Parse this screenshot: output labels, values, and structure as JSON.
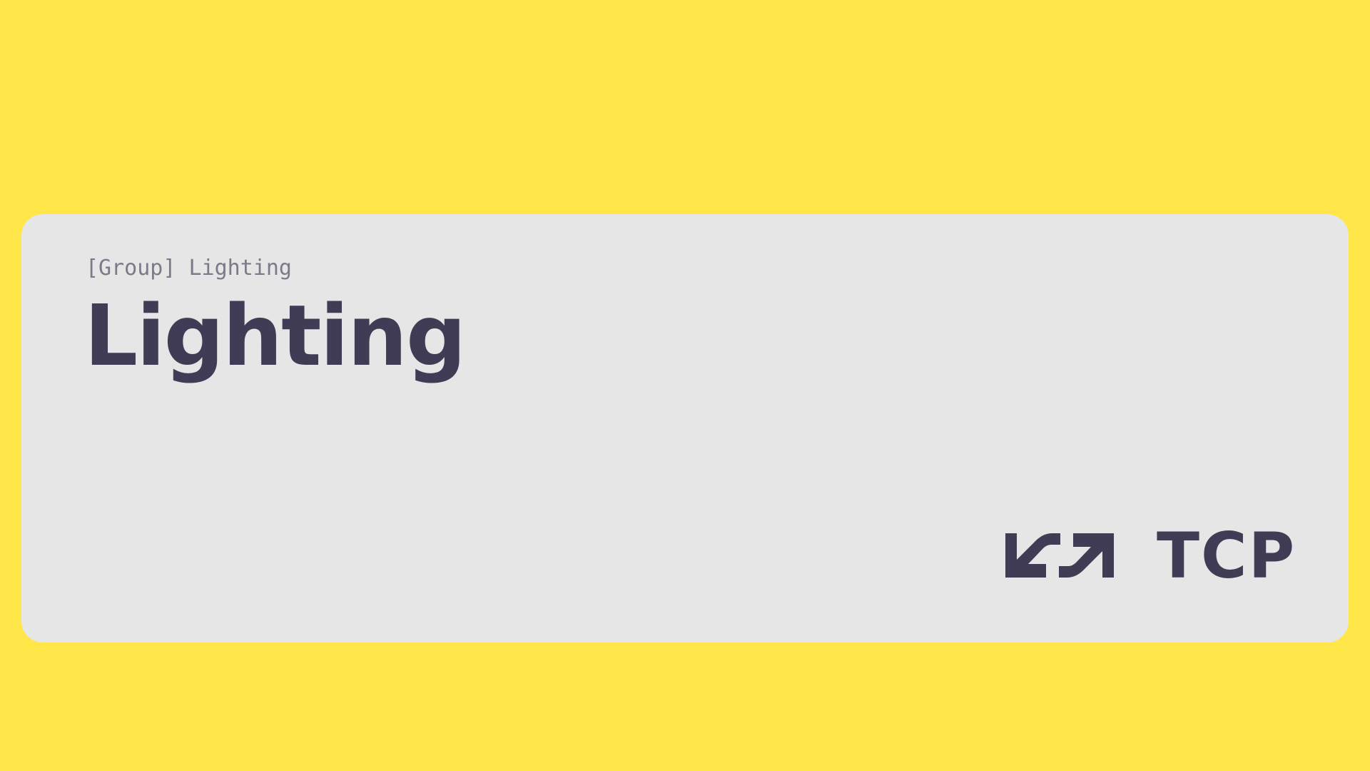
{
  "colors": {
    "background": "#FFE74A",
    "card": "#E6E6E6",
    "heading": "#403C56",
    "eyebrow": "#7C7A8A"
  },
  "card": {
    "eyebrow": "[Group] Lighting",
    "title": "Lighting"
  },
  "brand": {
    "icon": "tcp-arrows-logo-icon",
    "name": "TCP"
  }
}
